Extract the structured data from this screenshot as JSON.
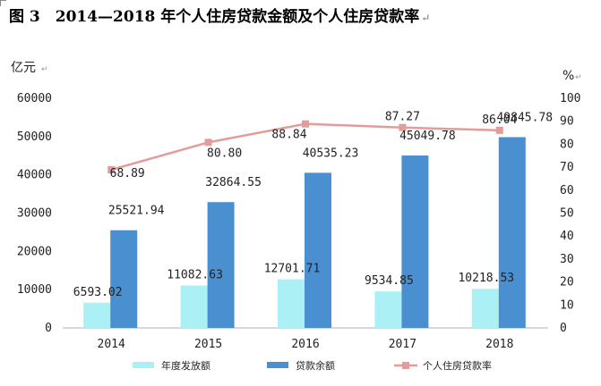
{
  "title": "图 3　2014—2018 年个人住房贷款金额及个人住房贷款率",
  "title_mark": "↵",
  "chart_data": {
    "type": "bar",
    "categories": [
      "2014",
      "2015",
      "2016",
      "2017",
      "2018"
    ],
    "y_left": {
      "unit": "亿元",
      "ylim": [
        0,
        60000
      ],
      "ticks": [
        "0",
        "10000",
        "20000",
        "30000",
        "40000",
        "50000",
        "60000"
      ]
    },
    "y_right": {
      "unit": "%",
      "ylim": [
        0,
        100
      ],
      "ticks": [
        "0",
        "10",
        "20",
        "30",
        "40",
        "50",
        "60",
        "70",
        "80",
        "90",
        "100"
      ]
    },
    "series": [
      {
        "name": "年度发放额",
        "type": "bar",
        "axis": "left",
        "color": "#aaf0f5",
        "values": [
          6593.02,
          11082.63,
          12701.71,
          9534.85,
          10218.53
        ],
        "labels": [
          "6593.02",
          "11082.63",
          "12701.71",
          "9534.85",
          "10218.53"
        ]
      },
      {
        "name": "贷款余额",
        "type": "bar",
        "axis": "left",
        "color": "#4a8fd0",
        "values": [
          25521.94,
          32864.55,
          40535.23,
          45049.78,
          49845.78
        ],
        "labels": [
          "25521.94",
          "32864.55",
          "40535.23",
          "45049.78",
          "49845.78"
        ]
      },
      {
        "name": "个人住房贷款率",
        "type": "line",
        "axis": "right",
        "color": "#e39c9a",
        "values": [
          68.89,
          80.8,
          88.84,
          87.27,
          86.04
        ],
        "labels": [
          "68.89",
          "80.80",
          "88.84",
          "87.27",
          "86.04"
        ]
      }
    ],
    "legend_position": "bottom",
    "grid": false
  }
}
